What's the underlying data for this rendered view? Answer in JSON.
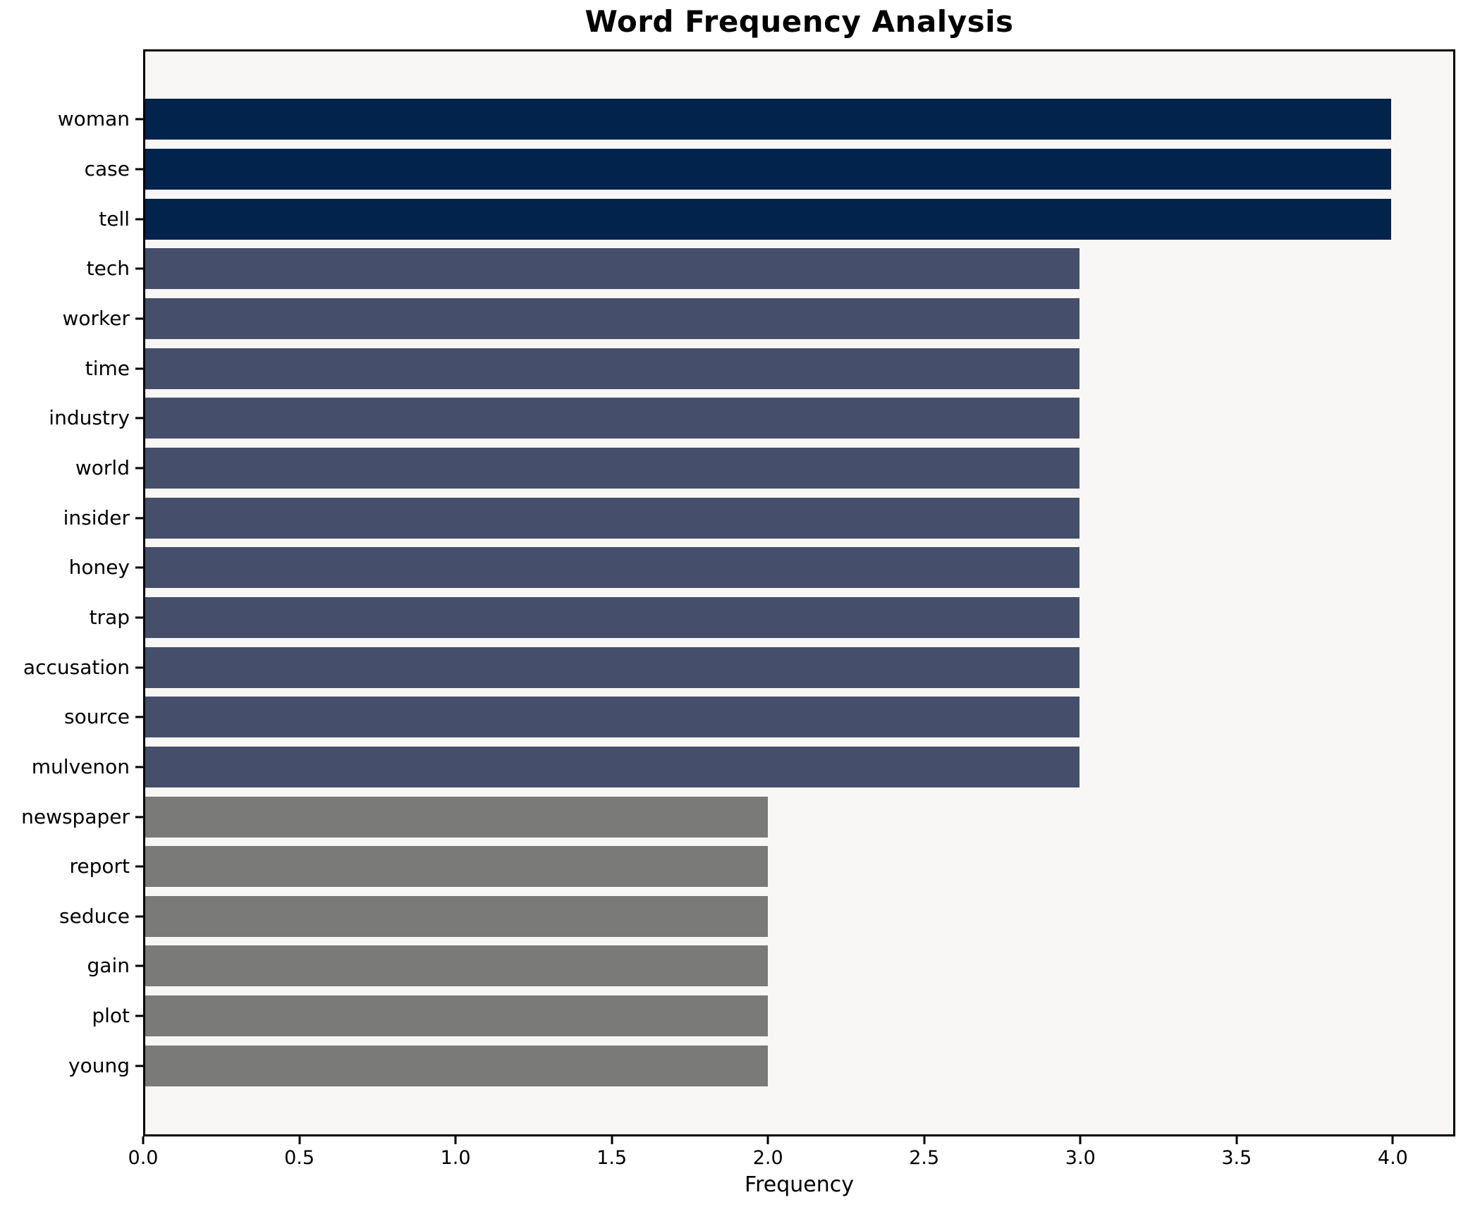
{
  "chart_data": {
    "type": "bar",
    "orientation": "horizontal",
    "title": "Word Frequency Analysis",
    "xlabel": "Frequency",
    "ylabel": "",
    "categories": [
      "woman",
      "case",
      "tell",
      "tech",
      "worker",
      "time",
      "industry",
      "world",
      "insider",
      "honey",
      "trap",
      "accusation",
      "source",
      "mulvenon",
      "newspaper",
      "report",
      "seduce",
      "gain",
      "plot",
      "young"
    ],
    "values": [
      4,
      4,
      4,
      3,
      3,
      3,
      3,
      3,
      3,
      3,
      3,
      3,
      3,
      3,
      2,
      2,
      2,
      2,
      2,
      2
    ],
    "xlim": [
      0,
      4.2
    ],
    "xticks": [
      {
        "value": 0,
        "label": "0.0"
      },
      {
        "value": 0.5,
        "label": "0.5"
      },
      {
        "value": 1,
        "label": "1.0"
      },
      {
        "value": 1.5,
        "label": "1.5"
      },
      {
        "value": 2,
        "label": "2.0"
      },
      {
        "value": 2.5,
        "label": "2.5"
      },
      {
        "value": 3,
        "label": "3.0"
      },
      {
        "value": 3.5,
        "label": "3.5"
      },
      {
        "value": 4,
        "label": "4.0"
      }
    ],
    "grid": false,
    "legend": null,
    "color_by_value": {
      "4": "#02234c",
      "3": "#454f6b",
      "2": "#7a7a78"
    },
    "colors": {
      "plot_background": "#f8f7f5",
      "figure_background": "#ffffff",
      "spine": "#000000",
      "text": "#000000"
    }
  }
}
